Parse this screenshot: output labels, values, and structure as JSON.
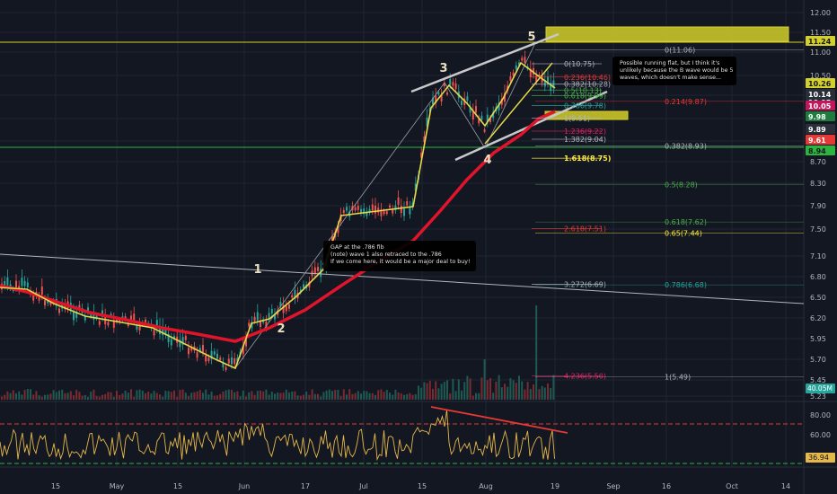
{
  "chart_data": {
    "type": "line",
    "title": "",
    "xlabel": "",
    "ylabel": "",
    "ylim": [
      5.2,
      12.1
    ],
    "price_ticks": [
      "12.00",
      "11.50",
      "11.00",
      "10.50",
      "10.00",
      "9.50",
      "9.00",
      "8.70",
      "8.30",
      "7.90",
      "7.50",
      "7.10",
      "6.80",
      "6.50",
      "6.20",
      "5.95",
      "5.70",
      "5.45",
      "5.23"
    ],
    "time_ticks": [
      "15",
      "May",
      "15",
      "Jun",
      "17",
      "Jul",
      "15",
      "Aug",
      "19",
      "Sep",
      "16",
      "Oct",
      "14"
    ],
    "rsi_ticks": [
      "80.00",
      "60.00",
      "40.00"
    ],
    "rsi_current": "36.94",
    "volume_label": "40.05M",
    "price_badges": [
      {
        "text": "11.24",
        "color": "#d4cf2a",
        "text_color": "#131722"
      },
      {
        "text": "10.26",
        "color": "#d4cf2a",
        "text_color": "#131722"
      },
      {
        "text": "10.14",
        "color": "#2a2e39",
        "text_color": "#ffffff"
      },
      {
        "text": "10.05",
        "color": "#2a2e39",
        "text_color": "#ffffff"
      },
      {
        "text": "10.05",
        "color": "#c2185b",
        "text_color": "#ffffff"
      },
      {
        "text": "9.98",
        "color": "#1e7d3e",
        "text_color": "#ffffff"
      },
      {
        "text": "9.89",
        "color": "#2a2e39",
        "text_color": "#ffffff"
      },
      {
        "text": "9.61",
        "color": "#e53935",
        "text_color": "#ffffff"
      },
      {
        "text": "8.94",
        "color": "#2bb540",
        "text_color": "#131722"
      }
    ],
    "series": [
      {
        "name": "",
        "color": "#e0142a",
        "values": [
          6.57,
          6.5,
          6.35,
          6.2,
          6.05,
          5.95,
          5.9,
          6.2,
          6.7,
          7.2,
          7.85,
          8.4,
          8.9,
          9.3,
          9.61
        ]
      },
      {
        "name": "",
        "color": "#e6d84a",
        "values": [
          6.6,
          6.38,
          6.25,
          6.05,
          5.75,
          5.7,
          6.15,
          6.8,
          7.4,
          8.0,
          8.5,
          10.1,
          10.2,
          10.5,
          10.26
        ]
      }
    ],
    "wave_labels": [
      "1",
      "2",
      "3",
      "4",
      "5"
    ],
    "fib_levels": [
      {
        "text": "0(10.75)",
        "color": "#b2b5be",
        "value": 10.75
      },
      {
        "text": "0.236(10.46)",
        "color": "#e53935",
        "value": 10.46
      },
      {
        "text": "0.382(10.28)",
        "color": "#b2b5be",
        "value": 10.28
      },
      {
        "text": "0.5(10.13)",
        "color": "#4caf50",
        "value": 10.13
      },
      {
        "text": "0.618(9.99)",
        "color": "#4caf50",
        "value": 9.99
      },
      {
        "text": "0.786(9.78)",
        "color": "#26a69a",
        "value": 9.78
      },
      {
        "text": "1(9.51)",
        "color": "#b2b5be",
        "value": 9.51
      },
      {
        "text": "1.236(9.22)",
        "color": "#e91e63",
        "value": 9.22
      },
      {
        "text": "1.382(9.04)",
        "color": "#b2b5be",
        "value": 9.04
      },
      {
        "text": "1.618(8.75)",
        "color": "#ffeb3b",
        "value": 8.75
      },
      {
        "text": "2.618(7.51)",
        "color": "#e53935",
        "value": 7.51
      },
      {
        "text": "3.272(6.69)",
        "color": "#b2b5be",
        "value": 6.69
      },
      {
        "text": "4.236(5.50)",
        "color": "#e91e63",
        "value": 5.5
      }
    ],
    "fib_levels_right": [
      {
        "text": "0(11.06)",
        "color": "#b2b5be",
        "value": 11.06
      },
      {
        "text": "0.214(9.87)",
        "color": "#e53935",
        "value": 9.87
      },
      {
        "text": "0.382(8.93)",
        "color": "#b2b5be",
        "value": 8.93
      },
      {
        "text": "0.5(8.28)",
        "color": "#4caf50",
        "value": 8.28
      },
      {
        "text": "0.618(7.62)",
        "color": "#4caf50",
        "value": 7.62
      },
      {
        "text": "0.65(7.44)",
        "color": "#ffeb3b",
        "value": 7.44
      },
      {
        "text": "0.786(6.68)",
        "color": "#26a69a",
        "value": 6.68
      },
      {
        "text": "1(5.49)",
        "color": "#b2b5be",
        "value": 5.49
      }
    ],
    "annotations": [
      {
        "lines": [
          "GAP at the .786 fib",
          "(note) wave 1 also retraced to the .786",
          "If we come here, it would be a major deal to buy!"
        ]
      },
      {
        "lines": [
          "Possible running flat, but I think it's",
          "unlikely because the B wave would be 5",
          "waves, which doesn't make sense..."
        ]
      }
    ],
    "grid": true,
    "legend": "none"
  },
  "colors": {
    "background": "#131722",
    "grid": "#1f2431",
    "axis_text": "#b2b5be",
    "ma_red": "#e0142a",
    "ma_yellow": "#e6d84a",
    "candle_up": "#26a69a",
    "candle_down": "#ef5350",
    "rsi": "#e6b84a"
  }
}
